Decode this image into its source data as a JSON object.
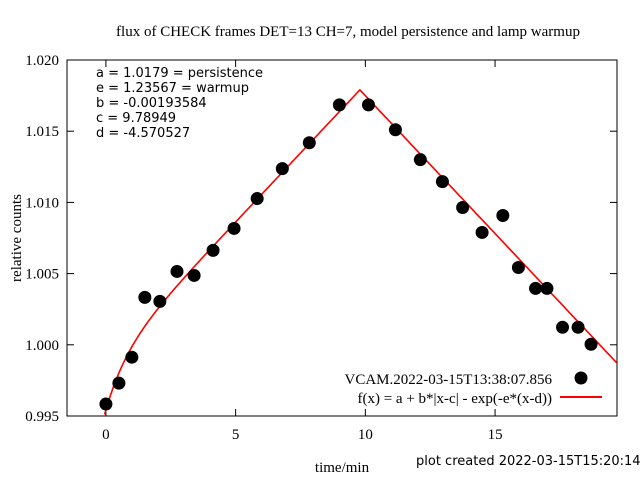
{
  "chart_data": {
    "type": "scatter",
    "title": "flux of CHECK frames DET=13 CH=7, model persistence and lamp warmup",
    "xlabel": "time/min",
    "ylabel": "relative counts",
    "xlim": [
      -1.5,
      19.7
    ],
    "ylim": [
      0.995,
      1.02
    ],
    "xticks": [
      0,
      5,
      10,
      15
    ],
    "yticks": [
      "0.995",
      "1.000",
      "1.005",
      "1.010",
      "1.015",
      "1.020"
    ],
    "grid": false,
    "legend_position": "bottom-right",
    "series": [
      {
        "name": "VCAM.2022-03-15T13:38:07.856",
        "color": "#000000",
        "x": [
          0,
          0.5,
          1.0,
          1.5,
          2.08,
          2.74,
          3.4,
          4.13,
          4.94,
          5.83,
          6.8,
          7.84,
          9.0,
          10.12,
          11.16,
          12.12,
          12.97,
          13.75,
          14.5,
          15.3,
          15.9,
          16.56,
          17.0,
          17.6,
          18.2,
          18.7
        ],
        "y": [
          0.99584,
          0.99731,
          0.99913,
          1.00333,
          1.00305,
          1.00515,
          1.00487,
          1.00663,
          1.00817,
          1.01027,
          1.01237,
          1.01419,
          1.01685,
          1.01685,
          1.0151,
          1.013,
          1.01146,
          1.00964,
          1.00789,
          1.00908,
          1.00543,
          1.00396,
          1.00396,
          1.00123,
          1.00123,
          1.00004
        ]
      },
      {
        "name": "f(x) = a + b*|x-c| - exp(-e*(x-d))",
        "type": "line",
        "color": "#ff0000",
        "params": {
          "a": 1.0179,
          "b": -0.00193584,
          "c": 9.78949,
          "d": -4.570527,
          "e": 1.23567
        }
      }
    ],
    "annotations": [
      "a = 1.0179 = persistence",
      "e = 1.23567 = warmup",
      "b = -0.00193584",
      "c = 9.78949",
      "d = -4.570527"
    ],
    "footer": "plot created 2022-03-15T15:20:14"
  }
}
